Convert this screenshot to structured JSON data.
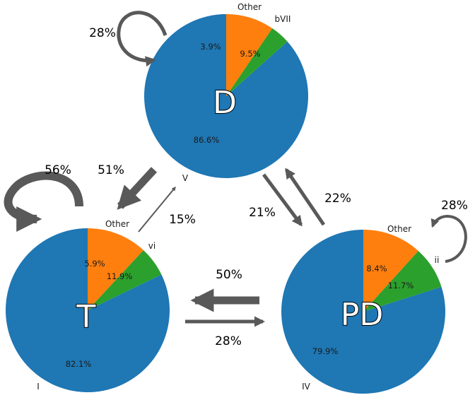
{
  "nodes": [
    {
      "id": "D",
      "label": "D",
      "slices": [
        {
          "name": "V",
          "value": 86.6,
          "pct_text": "86.6%",
          "color": "#1f77b4"
        },
        {
          "name": "Other",
          "value": 3.9,
          "pct_text": "3.9%",
          "color": "#2ca02c"
        },
        {
          "name": "bVII",
          "value": 9.5,
          "pct_text": "9.5%",
          "color": "#ff7f0e"
        }
      ]
    },
    {
      "id": "T",
      "label": "T",
      "slices": [
        {
          "name": "I",
          "value": 82.1,
          "pct_text": "82.1%",
          "color": "#1f77b4"
        },
        {
          "name": "Other",
          "value": 5.9,
          "pct_text": "5.9%",
          "color": "#2ca02c"
        },
        {
          "name": "vi",
          "value": 11.9,
          "pct_text": "11.9%",
          "color": "#ff7f0e"
        }
      ]
    },
    {
      "id": "PD",
      "label": "PD",
      "slices": [
        {
          "name": "IV",
          "value": 79.9,
          "pct_text": "79.9%",
          "color": "#1f77b4"
        },
        {
          "name": "Other",
          "value": 8.4,
          "pct_text": "8.4%",
          "color": "#2ca02c"
        },
        {
          "name": "ii",
          "value": 11.7,
          "pct_text": "11.7%",
          "color": "#ff7f0e"
        }
      ]
    }
  ],
  "transitions": [
    {
      "from": "D",
      "to": "D",
      "label": "28%",
      "value": 28
    },
    {
      "from": "T",
      "to": "T",
      "label": "56%",
      "value": 56
    },
    {
      "from": "PD",
      "to": "PD",
      "label": "28%",
      "value": 28
    },
    {
      "from": "D",
      "to": "T",
      "label": "51%",
      "value": 51
    },
    {
      "from": "T",
      "to": "D",
      "label": "15%",
      "value": 15
    },
    {
      "from": "D",
      "to": "PD",
      "label": "21%",
      "value": 21
    },
    {
      "from": "PD",
      "to": "D",
      "label": "22%",
      "value": 22
    },
    {
      "from": "PD",
      "to": "T",
      "label": "50%",
      "value": 50
    },
    {
      "from": "T",
      "to": "PD",
      "label": "28%",
      "value": 28
    }
  ],
  "colors": {
    "arrow": "#595959"
  }
}
